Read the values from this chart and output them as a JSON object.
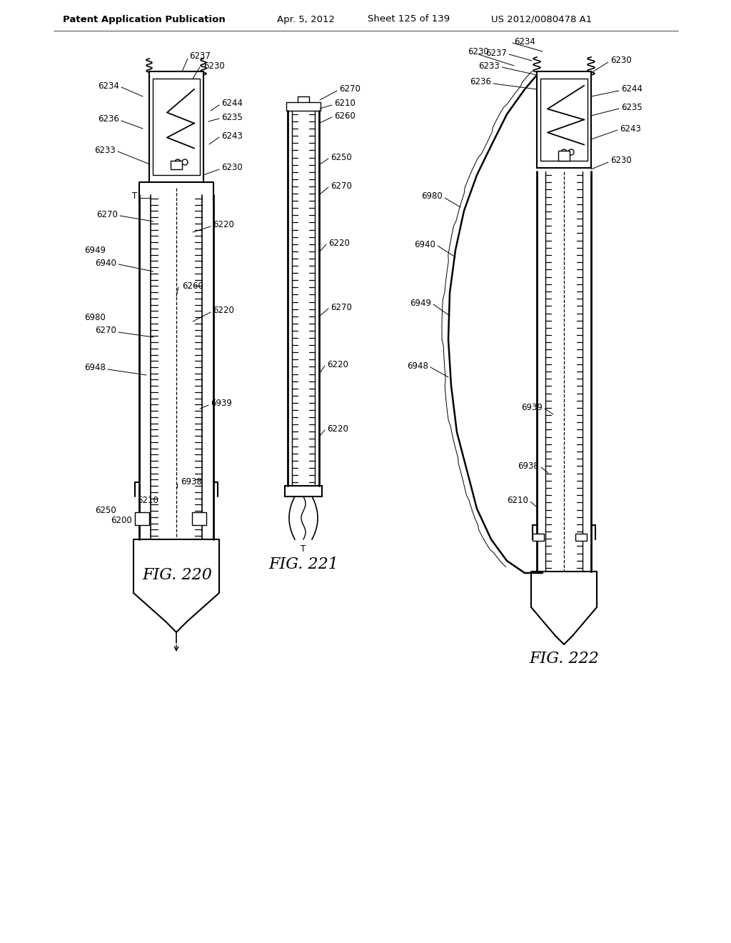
{
  "background_color": "#ffffff",
  "header_text": "Patent Application Publication",
  "header_date": "Apr. 5, 2012",
  "header_sheet": "Sheet 125 of 139",
  "header_patent": "US 2012/0080478 A1",
  "fig220_label": "FIG. 220",
  "fig221_label": "FIG. 221",
  "fig222_label": "FIG. 222",
  "lfs": 8.5,
  "fig_lfs": 16
}
